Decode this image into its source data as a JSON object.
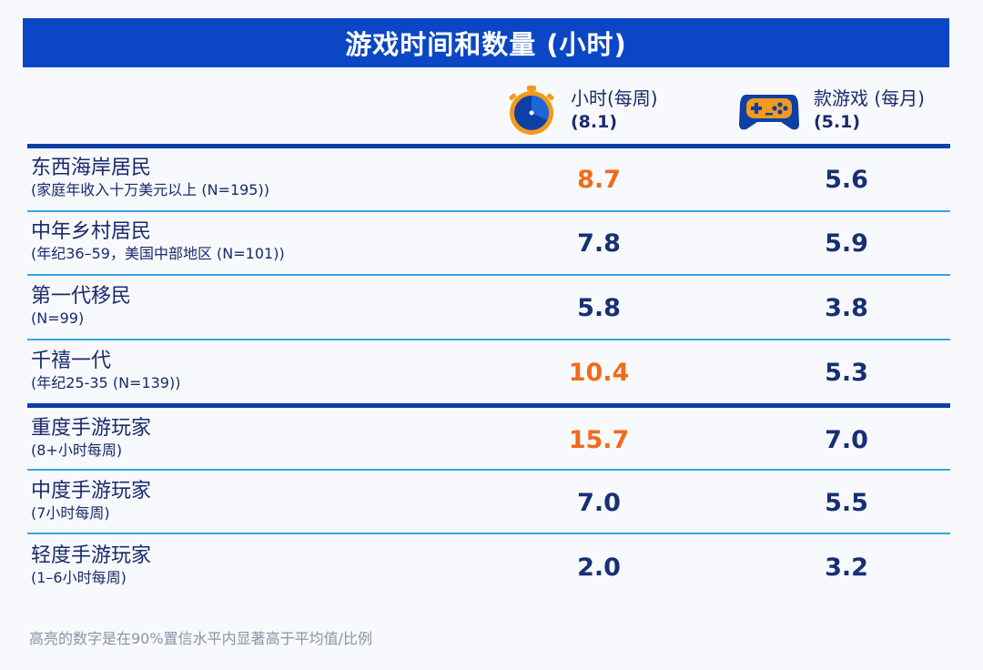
{
  "title": "游戏时间和数量 (小时)",
  "columns": [
    {
      "label": "小时(每周)",
      "sub": "(8.1)",
      "icon": "stopwatch-icon"
    },
    {
      "label": "款游戏 (每月)",
      "sub": "(5.1)",
      "icon": "gamepad-icon"
    }
  ],
  "colors": {
    "banner": "#0b47c5",
    "highlight": "#f26a1b",
    "value": "#172f75",
    "rule": "#35a7ea"
  },
  "chart_data": {
    "type": "table",
    "title": "游戏时间和数量 (小时)",
    "columns": [
      "小时(每周) (8.1)",
      "款游戏 (每月) (5.1)"
    ],
    "rows": [
      {
        "label": "东西海岸居民",
        "sub": "(家庭年收入十万美元以上 (N=195))",
        "hours": "8.7",
        "games": "5.6",
        "hours_highlight": true
      },
      {
        "label": "中年乡村居民",
        "sub": "(年纪36–59，美国中部地区 (N=101))",
        "hours": "7.8",
        "games": "5.9",
        "hours_highlight": false
      },
      {
        "label": "第一代移民",
        "sub": "(N=99)",
        "hours": "5.8",
        "games": "3.8",
        "hours_highlight": false
      },
      {
        "label": "千禧一代",
        "sub": "(年纪25-35 (N=139))",
        "hours": "10.4",
        "games": "5.3",
        "hours_highlight": true
      },
      {
        "label": "重度手游玩家",
        "sub": "(8+小时每周)",
        "hours": "15.7",
        "games": "7.0",
        "hours_highlight": true
      },
      {
        "label": "中度手游玩家",
        "sub": "(7小时每周)",
        "hours": "7.0",
        "games": "5.5",
        "hours_highlight": false
      },
      {
        "label": "轻度手游玩家",
        "sub": "(1–6小时每周)",
        "hours": "2.0",
        "games": "3.2",
        "hours_highlight": false
      }
    ]
  },
  "footnote": "高亮的数字是在90%置信水平内显著高于平均值/比例"
}
